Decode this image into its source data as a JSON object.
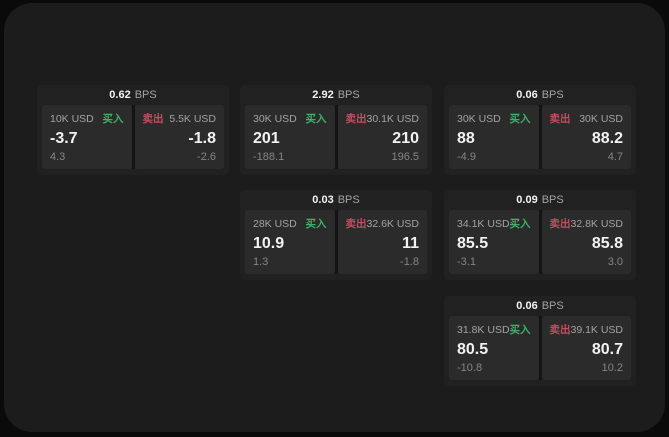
{
  "theme": {
    "page_bg": "#0a0a0a",
    "panel_bg": "#1c1c1c",
    "card_bg": "#212121",
    "tile_bg": "#2b2b2b",
    "divider_bg": "#141414",
    "text_primary": "#f2f2f2",
    "text_secondary": "#a3a3a3",
    "text_muted": "#858585",
    "buy_color": "#3fb068",
    "sell_color": "#c24e60"
  },
  "labels": {
    "bps": "BPS",
    "buy": "买入",
    "sell": "卖出"
  },
  "cards": [
    {
      "bps": "0.62",
      "buy": {
        "notional": "10K USD",
        "price": "-3.7",
        "delta": "4.3"
      },
      "sell": {
        "notional": "5.5K USD",
        "price": "-1.8",
        "delta": "-2.6"
      }
    },
    {
      "bps": "2.92",
      "buy": {
        "notional": "30K USD",
        "price": "201",
        "delta": "-188.1"
      },
      "sell": {
        "notional": "30.1K USD",
        "price": "210",
        "delta": "196.5"
      }
    },
    {
      "bps": "0.06",
      "buy": {
        "notional": "30K USD",
        "price": "88",
        "delta": "-4.9"
      },
      "sell": {
        "notional": "30K USD",
        "price": "88.2",
        "delta": "4.7"
      }
    },
    {
      "bps": "0.03",
      "buy": {
        "notional": "28K USD",
        "price": "10.9",
        "delta": "1.3"
      },
      "sell": {
        "notional": "32.6K USD",
        "price": "11",
        "delta": "-1.8"
      }
    },
    {
      "bps": "0.09",
      "buy": {
        "notional": "34.1K USD",
        "price": "85.5",
        "delta": "-3.1"
      },
      "sell": {
        "notional": "32.8K USD",
        "price": "85.8",
        "delta": "3.0"
      }
    },
    {
      "bps": "0.06",
      "buy": {
        "notional": "31.8K USD",
        "price": "80.5",
        "delta": "-10.8"
      },
      "sell": {
        "notional": "39.1K USD",
        "price": "80.7",
        "delta": "10.2"
      }
    }
  ]
}
